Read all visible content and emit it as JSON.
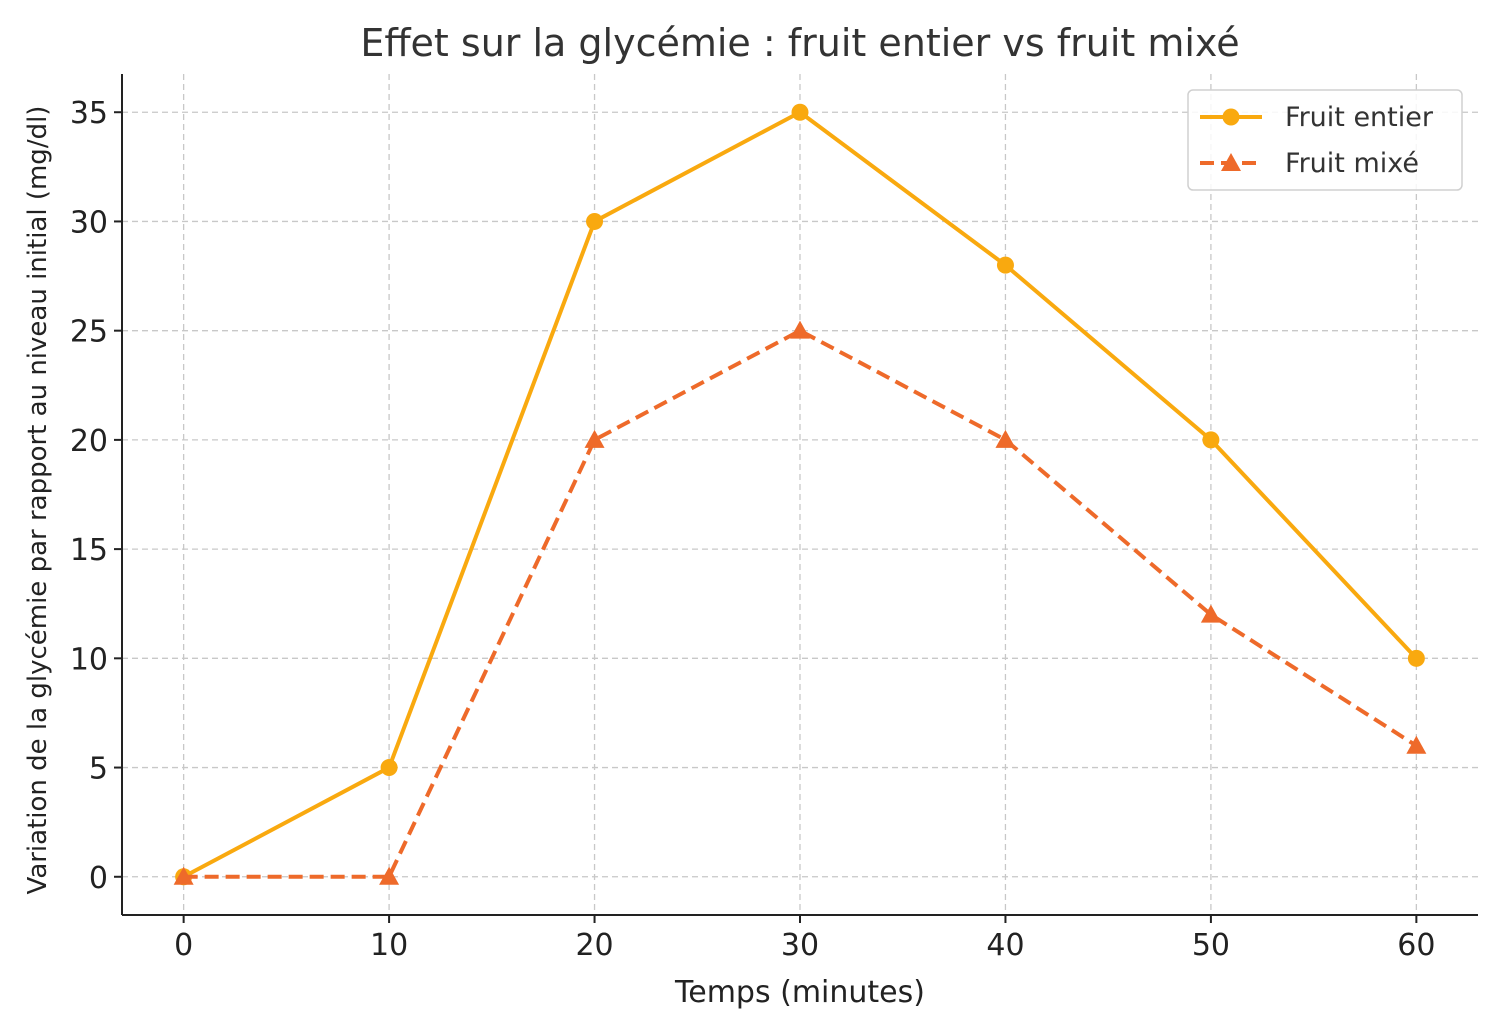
{
  "chart_data": {
    "type": "line",
    "title": "Effet sur la glycémie : fruit entier vs fruit mixé",
    "xlabel": "Temps (minutes)",
    "ylabel": "Variation de la glycémie par rapport au niveau initial (mg/dl)",
    "x": [
      0,
      10,
      20,
      30,
      40,
      50,
      60
    ],
    "xticks": [
      "0",
      "10",
      "20",
      "30",
      "40",
      "50",
      "60"
    ],
    "yticks": [
      "0",
      "5",
      "10",
      "15",
      "20",
      "25",
      "30",
      "35"
    ],
    "xlim": [
      -3,
      63
    ],
    "ylim": [
      -1.75,
      36.75
    ],
    "grid": true,
    "legend_position": "top-right",
    "series": [
      {
        "name": "Fruit entier",
        "values": [
          0,
          5,
          30,
          35,
          28,
          20,
          10
        ],
        "color": "#F9A90F",
        "line_style": "solid",
        "marker": "circle"
      },
      {
        "name": "Fruit mixé",
        "values": [
          0,
          0,
          20,
          25,
          20,
          12,
          6
        ],
        "color": "#EE6A2A",
        "line_style": "dashed",
        "marker": "triangle"
      }
    ]
  }
}
